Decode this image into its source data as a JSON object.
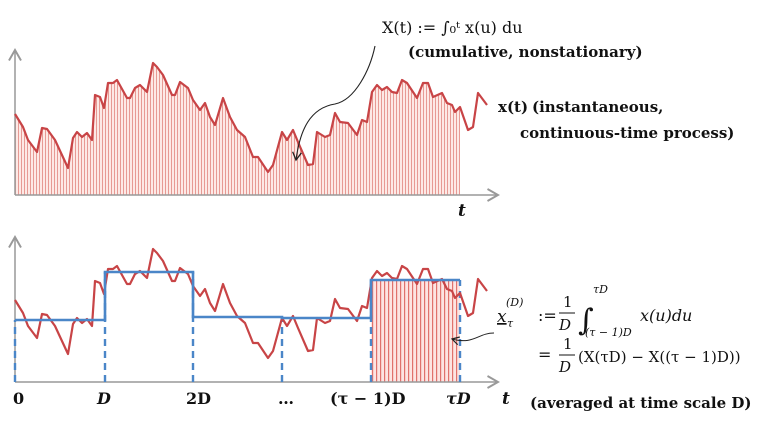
{
  "colors": {
    "process": "#c84446",
    "fill": "#f4b8b4",
    "average": "#4a86c8",
    "axis": "#999999",
    "annotation": "#222222"
  },
  "top_panel": {
    "cumulative_formula": "X(t) := ∫₀ᵗ x(u) du",
    "cumulative_note": "(cumulative, nonstationary)",
    "process_symbol": "x(t)",
    "process_note_line1": "(instantaneous,",
    "process_note_line2": "continuous-time process)",
    "axis_label": "t"
  },
  "bottom_panel": {
    "tick_labels": [
      "0",
      "D",
      "2D",
      "…",
      "(τ − 1)D",
      "τD"
    ],
    "axis_label": "t",
    "avg_symbol": "x",
    "avg_superscript": "(D)",
    "avg_subscript": "τ",
    "formula_line1_def": ":=",
    "formula_frac_num": "1",
    "formula_frac_den": "D",
    "formula_integral_upper": "τD",
    "formula_integral_lower": "(τ − 1)D",
    "formula_line1_integrand": "x(u)du",
    "formula_line2_eq": "=",
    "formula_line2_rest": "(X(τD) − X((τ − 1)D))",
    "note": "(averaged at time scale D)"
  }
}
